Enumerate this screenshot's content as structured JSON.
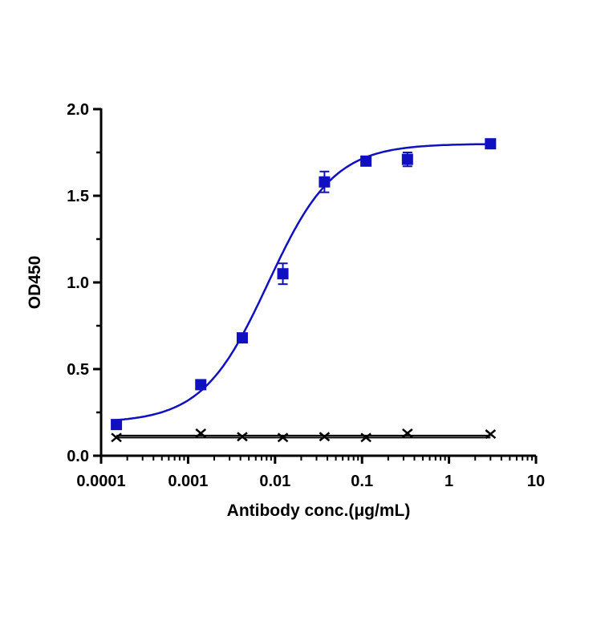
{
  "chart_data": {
    "type": "scatter",
    "title": "",
    "xlabel": "Antibody conc.(μg/mL)",
    "ylabel": "OD450",
    "x_scale": "log",
    "xlim": [
      0.0001,
      10
    ],
    "ylim": [
      0.0,
      2.0
    ],
    "x_ticks": [
      0.0001,
      0.001,
      0.01,
      0.1,
      1,
      10
    ],
    "x_tick_labels": [
      "0.0001",
      "0.001",
      "0.01",
      "0.1",
      "1",
      "10"
    ],
    "y_ticks": [
      0.0,
      0.5,
      1.0,
      1.5,
      2.0
    ],
    "y_tick_labels": [
      "0.0",
      "0.5",
      "1.0",
      "1.5",
      "2.0"
    ],
    "grid": false,
    "legend": "none",
    "series": [
      {
        "marker": "square",
        "color": "#1010c0",
        "fit": "sigmoid",
        "x": [
          0.00015,
          0.0014,
          0.0042,
          0.0123,
          0.037,
          0.111,
          0.333,
          3.0
        ],
        "y": [
          0.18,
          0.41,
          0.68,
          1.05,
          1.58,
          1.7,
          1.71,
          1.8
        ],
        "err": [
          0.02,
          0.02,
          0.02,
          0.06,
          0.06,
          0.02,
          0.04,
          0.02
        ],
        "fit_params": {
          "bottom": 0.19,
          "top": 1.8,
          "ec50": 0.0083,
          "hill": 1.15
        }
      },
      {
        "marker": "x",
        "color": "#000000",
        "fit": "line",
        "x": [
          0.00015,
          0.0014,
          0.0042,
          0.0123,
          0.037,
          0.111,
          0.333,
          3.0
        ],
        "y": [
          0.105,
          0.13,
          0.11,
          0.105,
          0.11,
          0.105,
          0.13,
          0.125
        ]
      }
    ]
  }
}
